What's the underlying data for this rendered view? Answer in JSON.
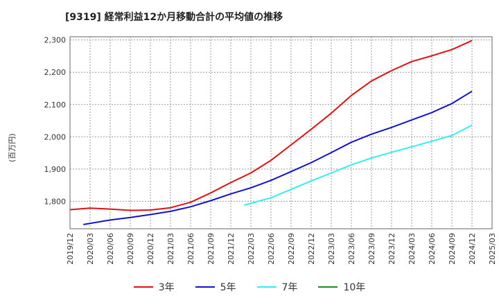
{
  "title": "[9319]  経常利益12か月移動合計の平均値の推移",
  "chart_data": {
    "type": "line",
    "title": "[9319]  経常利益12か月移動合計の平均値の推移",
    "ylabel": "(百万円)",
    "xlabel": "",
    "ylim": [
      1715,
      2310
    ],
    "yticks": [
      1800,
      1900,
      2000,
      2100,
      2200,
      2300
    ],
    "ytick_labels": [
      "1,800",
      "1,900",
      "2,000",
      "2,100",
      "2,200",
      "2,300"
    ],
    "x_range": [
      "2019/12",
      "2025/03"
    ],
    "xticks": [
      "2019/12",
      "2020/03",
      "2020/06",
      "2020/09",
      "2020/12",
      "2021/03",
      "2021/06",
      "2021/09",
      "2021/12",
      "2022/03",
      "2022/06",
      "2022/09",
      "2022/12",
      "2023/03",
      "2023/06",
      "2023/09",
      "2023/12",
      "2024/03",
      "2024/06",
      "2024/09",
      "2024/12",
      "2025/03"
    ],
    "grid": true,
    "legend_position": "bottom",
    "series": [
      {
        "name": "3年",
        "color": "#dd1111",
        "points": [
          [
            "2019/12",
            1774
          ],
          [
            "2020/03",
            1779
          ],
          [
            "2020/06",
            1776
          ],
          [
            "2020/09",
            1772
          ],
          [
            "2020/12",
            1773
          ],
          [
            "2021/03",
            1780
          ],
          [
            "2021/06",
            1797
          ],
          [
            "2021/09",
            1826
          ],
          [
            "2021/12",
            1858
          ],
          [
            "2022/03",
            1888
          ],
          [
            "2022/06",
            1927
          ],
          [
            "2022/09",
            1975
          ],
          [
            "2022/12",
            2023
          ],
          [
            "2023/03",
            2073
          ],
          [
            "2023/06",
            2128
          ],
          [
            "2023/09",
            2173
          ],
          [
            "2023/12",
            2205
          ],
          [
            "2024/03",
            2233
          ],
          [
            "2024/06",
            2251
          ],
          [
            "2024/09",
            2270
          ],
          [
            "2024/12",
            2298
          ]
        ]
      },
      {
        "name": "5年",
        "color": "#1111cc",
        "points": [
          [
            "2020/02",
            1728
          ],
          [
            "2020/06",
            1742
          ],
          [
            "2020/09",
            1750
          ],
          [
            "2020/12",
            1759
          ],
          [
            "2021/03",
            1769
          ],
          [
            "2021/06",
            1783
          ],
          [
            "2021/09",
            1802
          ],
          [
            "2021/12",
            1823
          ],
          [
            "2022/03",
            1842
          ],
          [
            "2022/06",
            1865
          ],
          [
            "2022/09",
            1892
          ],
          [
            "2022/12",
            1920
          ],
          [
            "2023/03",
            1951
          ],
          [
            "2023/06",
            1983
          ],
          [
            "2023/09",
            2008
          ],
          [
            "2023/12",
            2029
          ],
          [
            "2024/03",
            2052
          ],
          [
            "2024/06",
            2075
          ],
          [
            "2024/09",
            2103
          ],
          [
            "2024/12",
            2141
          ]
        ]
      },
      {
        "name": "7年",
        "color": "#33eeee",
        "points": [
          [
            "2022/02",
            1788
          ],
          [
            "2022/06",
            1811
          ],
          [
            "2022/09",
            1837
          ],
          [
            "2022/12",
            1863
          ],
          [
            "2023/03",
            1888
          ],
          [
            "2023/06",
            1913
          ],
          [
            "2023/09",
            1934
          ],
          [
            "2023/12",
            1952
          ],
          [
            "2024/03",
            1969
          ],
          [
            "2024/06",
            1986
          ],
          [
            "2024/09",
            2004
          ],
          [
            "2024/12",
            2036
          ]
        ]
      },
      {
        "name": "10年",
        "color": "#228822",
        "points": []
      }
    ]
  }
}
